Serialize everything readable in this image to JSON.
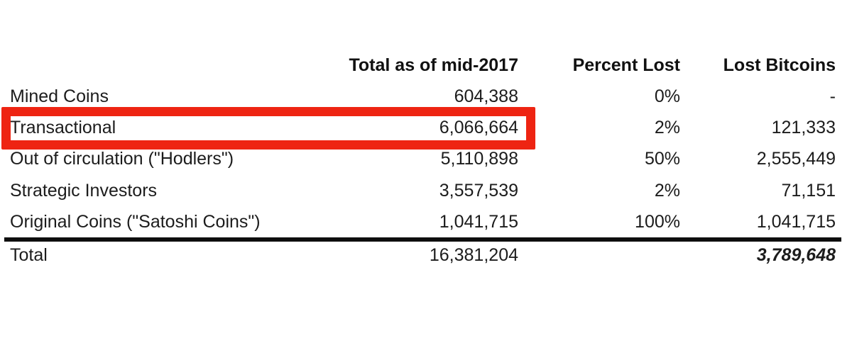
{
  "page": {
    "background_color": "#ffffff",
    "text_color": "#1c1c1c"
  },
  "table": {
    "columns": [
      "",
      "Total as of mid-2017",
      "Percent Lost",
      "Lost Bitcoins"
    ],
    "rows": [
      {
        "label": "Mined Coins",
        "total": "604,388",
        "percent": "0%",
        "lost": "-"
      },
      {
        "label": "Transactional",
        "total": "6,066,664",
        "percent": "2%",
        "lost": "121,333",
        "highlighted": true
      },
      {
        "label": "Out of circulation (\"Hodlers\")",
        "total": "5,110,898",
        "percent": "50%",
        "lost": "2,555,449"
      },
      {
        "label": "Strategic Investors",
        "total": "3,557,539",
        "percent": "2%",
        "lost": "71,151"
      },
      {
        "label": "Original Coins (\"Satoshi Coins\")",
        "total": "1,041,715",
        "percent": "100%",
        "lost": "1,041,715"
      }
    ],
    "total_row": {
      "label": "Total",
      "total": "16,381,204",
      "percent": "",
      "lost": "3,789,648"
    }
  },
  "annotation": {
    "type": "highlight-rectangle",
    "target_row": "Transactional",
    "color": "#ee2412"
  },
  "divider_color": "#0e0e0e"
}
